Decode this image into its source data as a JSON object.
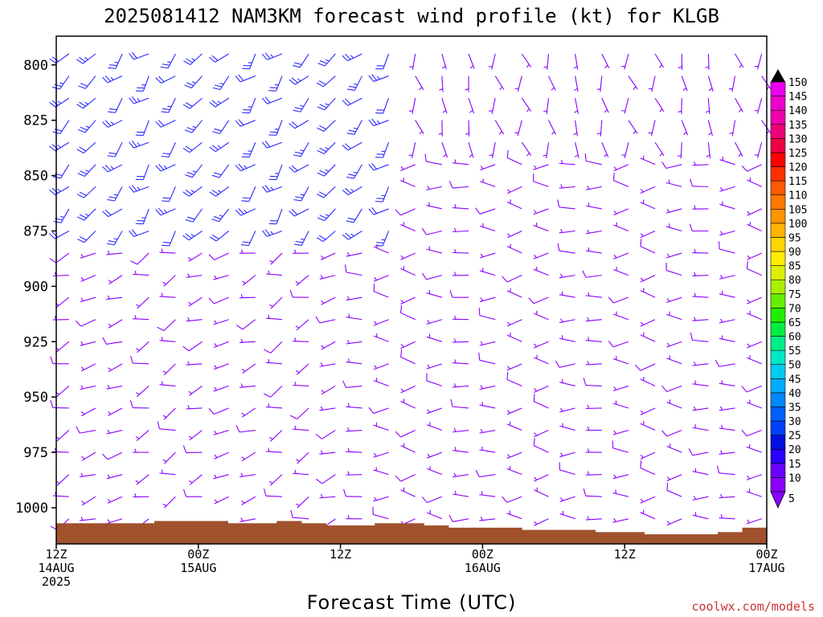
{
  "chart_data": {
    "type": "wind-barb-profile",
    "title": "2025081412 NAM3KM forecast wind profile (kt) for KLGB",
    "xlabel": "Forecast Time (UTC)",
    "ylabel": "",
    "credit": "coolwx.com/models",
    "y_axis": {
      "unit": "hPa",
      "inverted": true,
      "ylim": [
        1020,
        793
      ],
      "ticks": [
        800,
        825,
        850,
        875,
        900,
        925,
        950,
        975,
        1000
      ]
    },
    "x_axis": {
      "start": "2025-08-14T12Z",
      "end": "2025-08-17T00Z",
      "ticks": [
        {
          "value": "2025-08-14T12Z",
          "lines": [
            "12Z",
            "14AUG",
            "2025"
          ]
        },
        {
          "value": "2025-08-15T00Z",
          "lines": [
            "00Z",
            "15AUG"
          ]
        },
        {
          "value": "2025-08-15T12Z",
          "lines": [
            "12Z"
          ]
        },
        {
          "value": "2025-08-16T00Z",
          "lines": [
            "00Z",
            "16AUG"
          ]
        },
        {
          "value": "2025-08-16T12Z",
          "lines": [
            "12Z"
          ]
        },
        {
          "value": "2025-08-17T00Z",
          "lines": [
            "00Z",
            "17AUG"
          ]
        }
      ]
    },
    "colorbar": {
      "label_unit": "kt",
      "levels": [
        5,
        10,
        15,
        20,
        25,
        30,
        35,
        40,
        45,
        50,
        55,
        60,
        65,
        70,
        75,
        80,
        85,
        90,
        95,
        100,
        105,
        110,
        115,
        120,
        125,
        130,
        135,
        140,
        145,
        150
      ],
      "colors": [
        "#8a00ff",
        "#6a00ff",
        "#2a00ff",
        "#0010e0",
        "#0040ff",
        "#0060ff",
        "#0088ff",
        "#00aaff",
        "#00ccee",
        "#00e8c8",
        "#00ee88",
        "#00ee44",
        "#22ee00",
        "#66ee00",
        "#aaee00",
        "#ddee00",
        "#ffee00",
        "#ffd400",
        "#ffb400",
        "#ff9400",
        "#ff7800",
        "#ff5a00",
        "#ff3000",
        "#ff0000",
        "#ee0044",
        "#ee0077",
        "#ee00aa",
        "#ee00cc",
        "#ee00ee",
        "#cc00cc"
      ]
    },
    "ground": {
      "color": "#a0522d",
      "surface_pressure": [
        1007,
        1007,
        1007,
        1007,
        1006,
        1006,
        1006,
        1007,
        1007,
        1006,
        1007,
        1008,
        1008,
        1007,
        1007,
        1008,
        1009,
        1009,
        1009,
        1010,
        1010,
        1010,
        1011,
        1011,
        1012,
        1012,
        1012,
        1011,
        1009
      ]
    },
    "barbs": {
      "time_step_hours": 2.25,
      "levels_hPa": [
        795,
        805,
        815,
        825,
        835,
        845,
        855,
        865,
        875,
        885,
        895,
        905,
        915,
        925,
        935,
        945,
        955,
        965,
        975,
        985,
        995,
        1005
      ],
      "note_unit": "kt",
      "regimes": [
        {
          "hours": [
            0,
            30
          ],
          "levels": [
            795,
            880
          ],
          "direction_deg": 225,
          "speed_kt": 25
        },
        {
          "hours": [
            0,
            24
          ],
          "levels": [
            880,
            1005
          ],
          "direction_deg": 250,
          "speed_kt": 8
        },
        {
          "hours": [
            24,
            60
          ],
          "levels": [
            795,
            840
          ],
          "direction_deg": 170,
          "speed_kt": 7
        },
        {
          "hours": [
            24,
            60
          ],
          "levels": [
            840,
            1005
          ],
          "direction_deg": 270,
          "speed_kt": 8
        }
      ]
    }
  }
}
